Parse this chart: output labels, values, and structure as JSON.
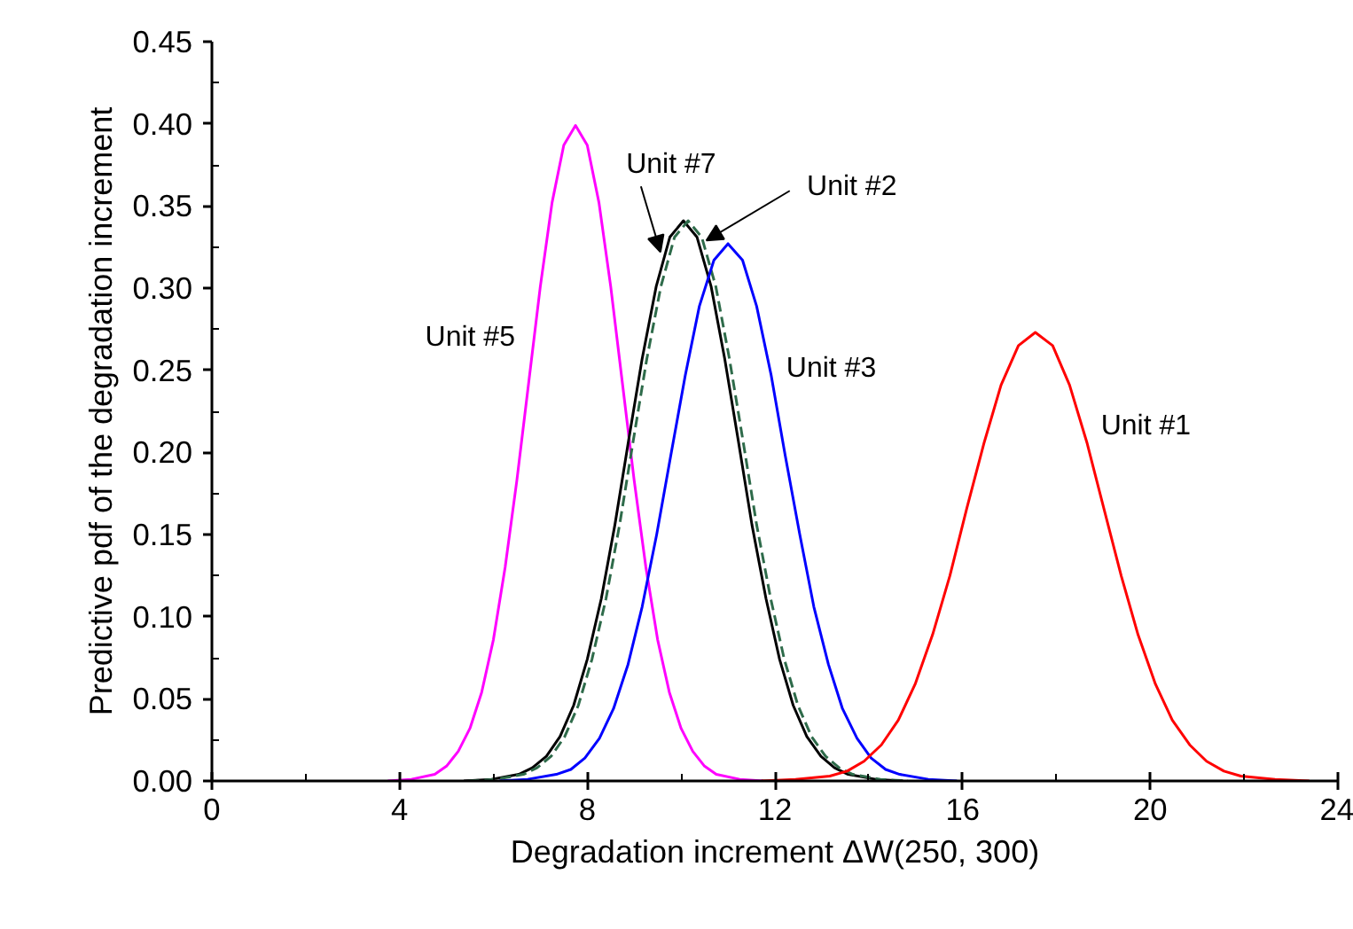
{
  "chart_data": {
    "type": "line",
    "xlabel": "Degradation increment ΔW(250, 300)",
    "ylabel": "Predictive pdf of the degradation increment",
    "xlim": [
      0,
      24
    ],
    "xticks": [
      0,
      4,
      8,
      12,
      16,
      20,
      24
    ],
    "ylim": [
      0,
      0.45
    ],
    "yticks": [
      {
        "value": 0,
        "label": "0.00"
      },
      {
        "value": 0.05,
        "label": "0.05"
      },
      {
        "value": 0.1,
        "label": "0.10"
      },
      {
        "value": 0.15,
        "label": "0.15"
      },
      {
        "value": 0.2,
        "label": "0.20"
      },
      {
        "value": 0.25,
        "label": "0.25"
      },
      {
        "value": 0.3,
        "label": "0.30"
      },
      {
        "value": 0.35,
        "label": "0.35"
      },
      {
        "value": 0.4,
        "label": "0.40"
      },
      {
        "value": 0.45,
        "label": "0.45"
      }
    ],
    "series": [
      {
        "color": "#ff00ff",
        "line_style": "solid",
        "x": [
          3.75,
          4.25,
          4.75,
          5,
          5.25,
          5.5,
          5.75,
          6,
          6.25,
          6.5,
          6.75,
          7,
          7.25,
          7.5,
          7.75,
          8,
          8.25,
          8.5,
          8.75,
          9,
          9.25,
          9.5,
          9.75,
          10,
          10.25,
          10.5,
          10.75,
          11.25,
          11.75
        ],
        "values": [
          0,
          0.001,
          0.004,
          0.009,
          0.018,
          0.032,
          0.054,
          0.086,
          0.13,
          0.183,
          0.242,
          0.301,
          0.352,
          0.387,
          0.399,
          0.387,
          0.352,
          0.301,
          0.242,
          0.183,
          0.13,
          0.086,
          0.054,
          0.032,
          0.018,
          0.009,
          0.004,
          0.001,
          0
        ]
      },
      {
        "color": "#000000",
        "line_style": "solid",
        "x": [
          5.37,
          5.96,
          6.54,
          6.83,
          7.13,
          7.42,
          7.71,
          8.0,
          8.3,
          8.59,
          8.88,
          9.17,
          9.47,
          9.76,
          10.05,
          10.34,
          10.64,
          10.93,
          11.22,
          11.51,
          11.81,
          12.1,
          12.39,
          12.68,
          12.98,
          13.27,
          13.56,
          14.15,
          14.73
        ],
        "values": [
          0,
          0.001,
          0.004,
          0.008,
          0.015,
          0.027,
          0.046,
          0.074,
          0.111,
          0.156,
          0.207,
          0.257,
          0.301,
          0.331,
          0.341,
          0.331,
          0.301,
          0.257,
          0.207,
          0.156,
          0.111,
          0.074,
          0.046,
          0.027,
          0.015,
          0.008,
          0.004,
          0.001,
          0
        ]
      },
      {
        "color": "#2e6b4a",
        "line_style": "dashed",
        "x": [
          5.47,
          6.06,
          6.64,
          6.93,
          7.23,
          7.52,
          7.81,
          8.1,
          8.4,
          8.69,
          8.98,
          9.27,
          9.57,
          9.86,
          10.15,
          10.44,
          10.74,
          11.03,
          11.32,
          11.61,
          11.91,
          12.2,
          12.49,
          12.78,
          13.08,
          13.37,
          13.66,
          14.25,
          14.83
        ],
        "values": [
          0,
          0.001,
          0.004,
          0.008,
          0.015,
          0.027,
          0.046,
          0.074,
          0.111,
          0.156,
          0.207,
          0.257,
          0.301,
          0.331,
          0.341,
          0.331,
          0.301,
          0.257,
          0.207,
          0.156,
          0.111,
          0.074,
          0.046,
          0.027,
          0.015,
          0.008,
          0.004,
          0.001,
          0
        ]
      },
      {
        "color": "#0000ff",
        "line_style": "solid",
        "x": [
          6.12,
          6.73,
          7.34,
          7.65,
          7.95,
          8.26,
          8.56,
          8.87,
          9.17,
          9.48,
          9.78,
          10.09,
          10.39,
          10.7,
          11.0,
          11.31,
          11.61,
          11.92,
          12.22,
          12.53,
          12.83,
          13.14,
          13.44,
          13.75,
          14.05,
          14.36,
          14.66,
          15.27,
          15.88
        ],
        "values": [
          0,
          0.001,
          0.004,
          0.007,
          0.014,
          0.026,
          0.044,
          0.071,
          0.106,
          0.15,
          0.198,
          0.247,
          0.289,
          0.317,
          0.327,
          0.317,
          0.289,
          0.247,
          0.198,
          0.15,
          0.106,
          0.071,
          0.044,
          0.026,
          0.014,
          0.007,
          0.004,
          0.001,
          0
        ]
      },
      {
        "color": "#ff0000",
        "line_style": "solid",
        "x": [
          11.71,
          12.44,
          13.17,
          13.54,
          13.9,
          14.27,
          14.63,
          14.99,
          15.36,
          15.73,
          16.09,
          16.46,
          16.82,
          17.19,
          17.55,
          17.92,
          18.28,
          18.65,
          19.01,
          19.38,
          19.74,
          20.11,
          20.47,
          20.84,
          21.2,
          21.57,
          21.93,
          22.66,
          23.39
        ],
        "values": [
          0,
          0.001,
          0.003,
          0.006,
          0.012,
          0.022,
          0.037,
          0.059,
          0.089,
          0.125,
          0.166,
          0.206,
          0.241,
          0.265,
          0.273,
          0.265,
          0.241,
          0.206,
          0.166,
          0.125,
          0.089,
          0.059,
          0.037,
          0.022,
          0.012,
          0.006,
          0.003,
          0.001,
          0
        ]
      }
    ],
    "annotations": [
      {
        "text": "Unit #5",
        "x": 6.84,
        "y": 0.27
      },
      {
        "text": "Unit #7",
        "x": 9.56,
        "y": 0.322
      },
      {
        "text": "Unit #2",
        "x": 10.54,
        "y": 0.329
      },
      {
        "text": "Unit #3",
        "x": 11.94,
        "y": 0.251
      },
      {
        "text": "Unit #1",
        "x": 18.57,
        "y": 0.216
      }
    ]
  }
}
